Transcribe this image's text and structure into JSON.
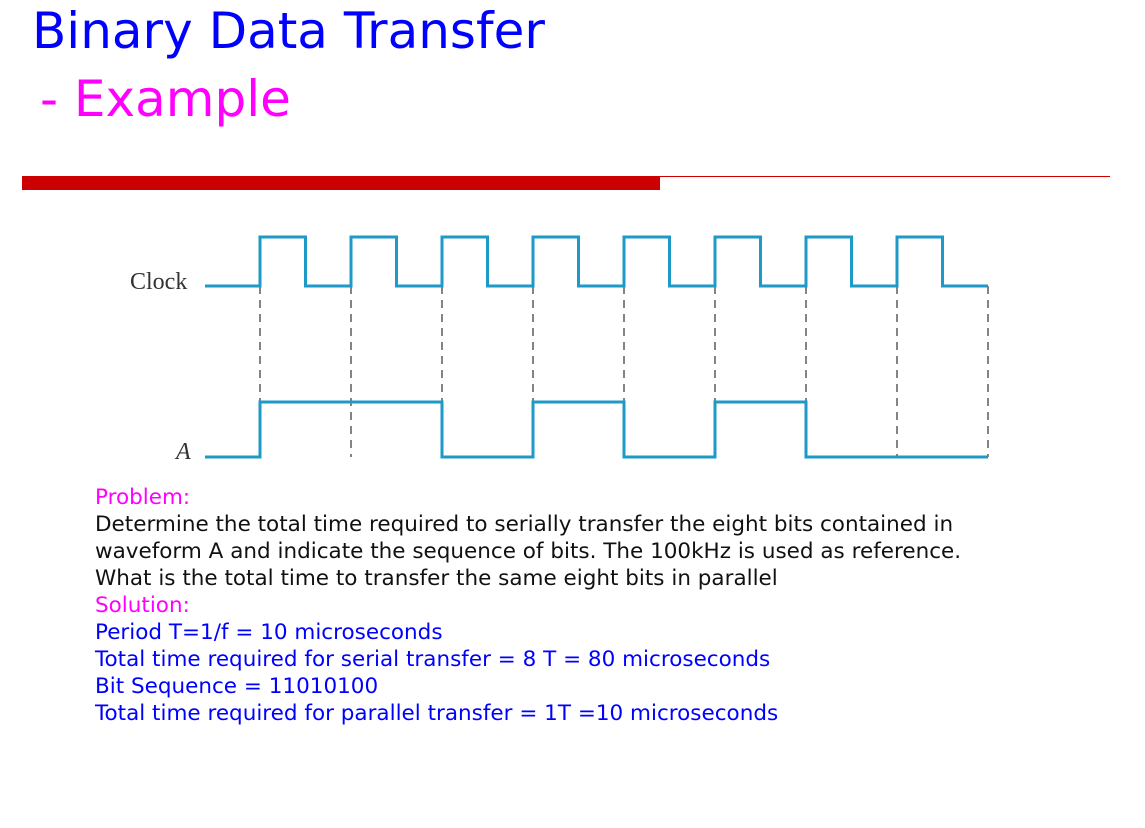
{
  "title": {
    "line1": "Binary Data Transfer",
    "line2": " - Example"
  },
  "timing_diagram": {
    "clock_label": "Clock",
    "a_label": "A",
    "waveform_a_bits": [
      1,
      1,
      0,
      1,
      0,
      1,
      0,
      0
    ],
    "clock_cycles": 8
  },
  "problem": {
    "heading": "Problem:",
    "lines": [
      "Determine the total time required to serially transfer the eight bits contained in",
      "waveform A and indicate the sequence of bits. The 100kHz is used as reference.",
      "What is the total time to transfer the same eight bits in parallel"
    ]
  },
  "solution": {
    "heading": "Solution:",
    "lines": [
      "Period T=1/f = 10 microseconds",
      "Total time required for serial transfer = 8 T = 80 microseconds",
      "Bit Sequence = 11010100",
      "Total time required for parallel transfer = 1T =10 microseconds"
    ]
  },
  "colors": {
    "title_primary": "#0000ff",
    "title_secondary": "#ff00ff",
    "divider": "#cc0000",
    "waveform": "#1e9ac8"
  }
}
